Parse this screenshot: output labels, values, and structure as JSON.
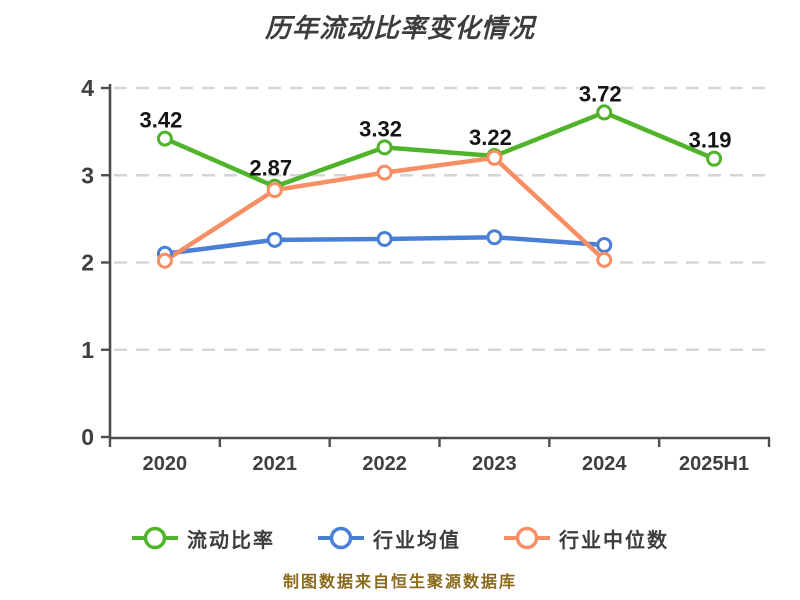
{
  "footer_note": "制图数据来自恒生聚源数据库",
  "colors": {
    "series_green": "#4fb42a",
    "series_blue": "#4a7fd6",
    "series_orange": "#f88e63",
    "marker_fill": "#ffffff",
    "grid": "#d6d6d6",
    "axis": "#4d4d4d",
    "tick_label": "#3f3f3f",
    "data_label": "#141414",
    "title": "#3d3d3d",
    "footer": "#8a6b1c",
    "background": "#ffffff"
  },
  "chart_data": {
    "type": "line",
    "title": "历年流动比率变化情况",
    "categories": [
      "2020",
      "2021",
      "2022",
      "2023",
      "2024",
      "2025H1"
    ],
    "series": [
      {
        "name": "流动比率",
        "color_key": "series_green",
        "values": [
          3.42,
          2.87,
          3.32,
          3.22,
          3.72,
          3.19
        ],
        "labeled": true
      },
      {
        "name": "行业均值",
        "color_key": "series_blue",
        "values": [
          2.1,
          2.26,
          2.27,
          2.29,
          2.2,
          null
        ],
        "labeled": false
      },
      {
        "name": "行业中位数",
        "color_key": "series_orange",
        "values": [
          2.02,
          2.83,
          3.03,
          3.2,
          2.03,
          null
        ],
        "labeled": false
      }
    ],
    "ylim": [
      0,
      4
    ],
    "yticks": [
      0,
      1,
      2,
      3,
      4
    ],
    "xlabel": "",
    "ylabel": "",
    "grid": "dashed-horizontal",
    "legend_position": "bottom",
    "data_label_series": "流动比率"
  }
}
